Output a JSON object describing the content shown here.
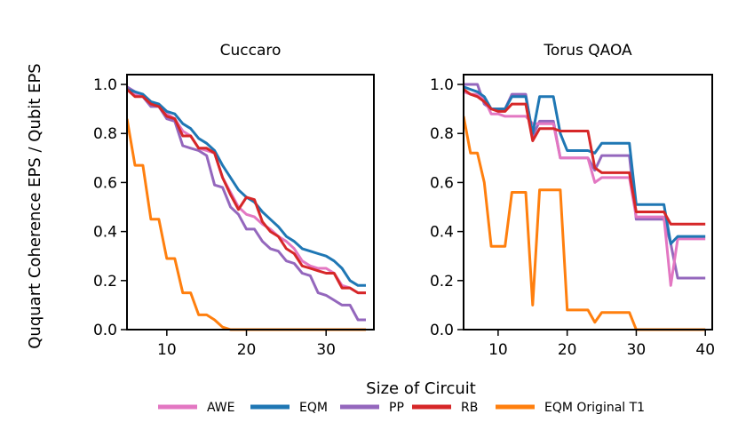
{
  "figure": {
    "ylabel": "Ququart Coherence EPS / Qubit EPS",
    "xlabel": "Size of Circuit"
  },
  "legend": {
    "placement": "bottom-center",
    "entries": [
      {
        "label": "AWE",
        "color": "#e377c2"
      },
      {
        "label": "EQM",
        "color": "#1f77b4"
      },
      {
        "label": "PP",
        "color": "#9467bd"
      },
      {
        "label": "RB",
        "color": "#d62728"
      },
      {
        "label": "EQM Original T1",
        "color": "#ff7f0e"
      }
    ]
  },
  "chart_data": [
    {
      "type": "line",
      "title": "Cuccaro",
      "xlabel": "Size of Circuit",
      "ylabel": "Ququart Coherence EPS / Qubit EPS",
      "xlim": [
        5,
        36
      ],
      "ylim": [
        0,
        1.04
      ],
      "xticks": [
        10,
        20,
        30
      ],
      "yticks": [
        0.0,
        0.2,
        0.4,
        0.6,
        0.8,
        1.0
      ],
      "ytick_labels": [
        "0.0",
        "0.2",
        "0.4",
        "0.6",
        "0.8",
        "1.0"
      ],
      "x": [
        5,
        6,
        7,
        8,
        9,
        10,
        11,
        12,
        13,
        14,
        15,
        16,
        17,
        18,
        19,
        20,
        21,
        22,
        23,
        24,
        25,
        26,
        27,
        28,
        29,
        30,
        31,
        32,
        33,
        34,
        35
      ],
      "series": [
        {
          "name": "EQM",
          "color": "#1f77b4",
          "values": [
            0.98,
            0.97,
            0.96,
            0.93,
            0.92,
            0.89,
            0.88,
            0.84,
            0.82,
            0.78,
            0.76,
            0.73,
            0.67,
            0.62,
            0.57,
            0.54,
            0.52,
            0.48,
            0.45,
            0.42,
            0.38,
            0.36,
            0.33,
            0.32,
            0.31,
            0.3,
            0.28,
            0.25,
            0.2,
            0.18,
            0.18
          ]
        },
        {
          "name": "AWE",
          "color": "#e377c2",
          "values": [
            0.98,
            0.96,
            0.95,
            0.93,
            0.91,
            0.88,
            0.86,
            0.81,
            0.79,
            0.74,
            0.73,
            0.72,
            0.62,
            0.56,
            0.5,
            0.47,
            0.46,
            0.43,
            0.41,
            0.38,
            0.36,
            0.33,
            0.28,
            0.26,
            0.25,
            0.25,
            0.23,
            0.18,
            0.17,
            0.15,
            0.15
          ]
        },
        {
          "name": "RB",
          "color": "#d62728",
          "values": [
            0.98,
            0.95,
            0.95,
            0.92,
            0.91,
            0.87,
            0.86,
            0.79,
            0.79,
            0.74,
            0.74,
            0.72,
            0.62,
            0.55,
            0.49,
            0.54,
            0.53,
            0.44,
            0.4,
            0.38,
            0.33,
            0.31,
            0.26,
            0.25,
            0.24,
            0.23,
            0.23,
            0.17,
            0.17,
            0.15,
            0.15
          ]
        },
        {
          "name": "PP",
          "color": "#9467bd",
          "values": [
            0.99,
            0.97,
            0.95,
            0.91,
            0.91,
            0.86,
            0.85,
            0.75,
            0.74,
            0.73,
            0.71,
            0.59,
            0.58,
            0.5,
            0.47,
            0.41,
            0.41,
            0.36,
            0.33,
            0.32,
            0.28,
            0.27,
            0.23,
            0.22,
            0.15,
            0.14,
            0.12,
            0.1,
            0.1,
            0.04,
            0.04
          ]
        },
        {
          "name": "EQM Original T1",
          "color": "#ff7f0e",
          "values": [
            0.86,
            0.67,
            0.67,
            0.45,
            0.45,
            0.29,
            0.29,
            0.15,
            0.15,
            0.06,
            0.06,
            0.04,
            0.01,
            0.0,
            0.0,
            0.0,
            0.0,
            0.0,
            0.0,
            0.0,
            0.0,
            0.0,
            0.0,
            0.0,
            0.0,
            0.0,
            0.0,
            0.0,
            0.0,
            0.0,
            0.0
          ]
        }
      ]
    },
    {
      "type": "line",
      "title": "Torus QAOA",
      "xlabel": "Size of Circuit",
      "ylabel": "",
      "xlim": [
        5,
        41
      ],
      "ylim": [
        0,
        1.04
      ],
      "xticks": [
        10,
        20,
        30,
        40
      ],
      "yticks": [
        0.0,
        0.2,
        0.4,
        0.6,
        0.8,
        1.0
      ],
      "ytick_labels": [
        "0.0",
        "0.2",
        "0.4",
        "0.6",
        "0.8",
        "1.0"
      ],
      "x": [
        5,
        6,
        7,
        8,
        9,
        10,
        11,
        12,
        13,
        14,
        15,
        16,
        17,
        18,
        19,
        20,
        21,
        22,
        23,
        24,
        25,
        26,
        27,
        28,
        29,
        30,
        31,
        32,
        33,
        34,
        35,
        36,
        37,
        38,
        39,
        40
      ],
      "series": [
        {
          "name": "EQM",
          "color": "#1f77b4",
          "values": [
            0.99,
            0.98,
            0.97,
            0.95,
            0.9,
            0.9,
            0.9,
            0.95,
            0.95,
            0.95,
            0.8,
            0.95,
            0.95,
            0.95,
            0.8,
            0.73,
            0.73,
            0.73,
            0.73,
            0.72,
            0.76,
            0.76,
            0.76,
            0.76,
            0.76,
            0.51,
            0.51,
            0.51,
            0.51,
            0.51,
            0.35,
            0.38,
            0.38,
            0.38,
            0.38,
            0.38
          ]
        },
        {
          "name": "AWE",
          "color": "#e377c2",
          "values": [
            0.97,
            0.96,
            0.96,
            0.94,
            0.88,
            0.88,
            0.87,
            0.87,
            0.87,
            0.87,
            0.84,
            0.84,
            0.84,
            0.84,
            0.7,
            0.7,
            0.7,
            0.7,
            0.7,
            0.6,
            0.62,
            0.62,
            0.62,
            0.62,
            0.62,
            0.46,
            0.46,
            0.46,
            0.46,
            0.46,
            0.18,
            0.37,
            0.37,
            0.37,
            0.37,
            0.37
          ]
        },
        {
          "name": "RB",
          "color": "#d62728",
          "values": [
            0.98,
            0.96,
            0.95,
            0.93,
            0.9,
            0.89,
            0.89,
            0.92,
            0.92,
            0.92,
            0.77,
            0.82,
            0.82,
            0.82,
            0.81,
            0.81,
            0.81,
            0.81,
            0.81,
            0.66,
            0.64,
            0.64,
            0.64,
            0.64,
            0.64,
            0.48,
            0.48,
            0.48,
            0.48,
            0.48,
            0.43,
            0.43,
            0.43,
            0.43,
            0.43,
            0.43
          ]
        },
        {
          "name": "PP",
          "color": "#9467bd",
          "values": [
            1.0,
            1.0,
            1.0,
            0.92,
            0.9,
            0.9,
            0.9,
            0.96,
            0.96,
            0.96,
            0.79,
            0.85,
            0.85,
            0.85,
            0.7,
            0.7,
            0.7,
            0.7,
            0.7,
            0.65,
            0.71,
            0.71,
            0.71,
            0.71,
            0.71,
            0.45,
            0.45,
            0.45,
            0.45,
            0.45,
            0.35,
            0.21,
            0.21,
            0.21,
            0.21,
            0.21
          ]
        },
        {
          "name": "EQM Original T1",
          "color": "#ff7f0e",
          "values": [
            0.87,
            0.72,
            0.72,
            0.6,
            0.34,
            0.34,
            0.34,
            0.56,
            0.56,
            0.56,
            0.1,
            0.57,
            0.57,
            0.57,
            0.57,
            0.08,
            0.08,
            0.08,
            0.08,
            0.03,
            0.07,
            0.07,
            0.07,
            0.07,
            0.07,
            0.0,
            0.0,
            0.0,
            0.0,
            0.0,
            0.0,
            0.0,
            0.0,
            0.0,
            0.0,
            0.0
          ]
        }
      ]
    }
  ]
}
